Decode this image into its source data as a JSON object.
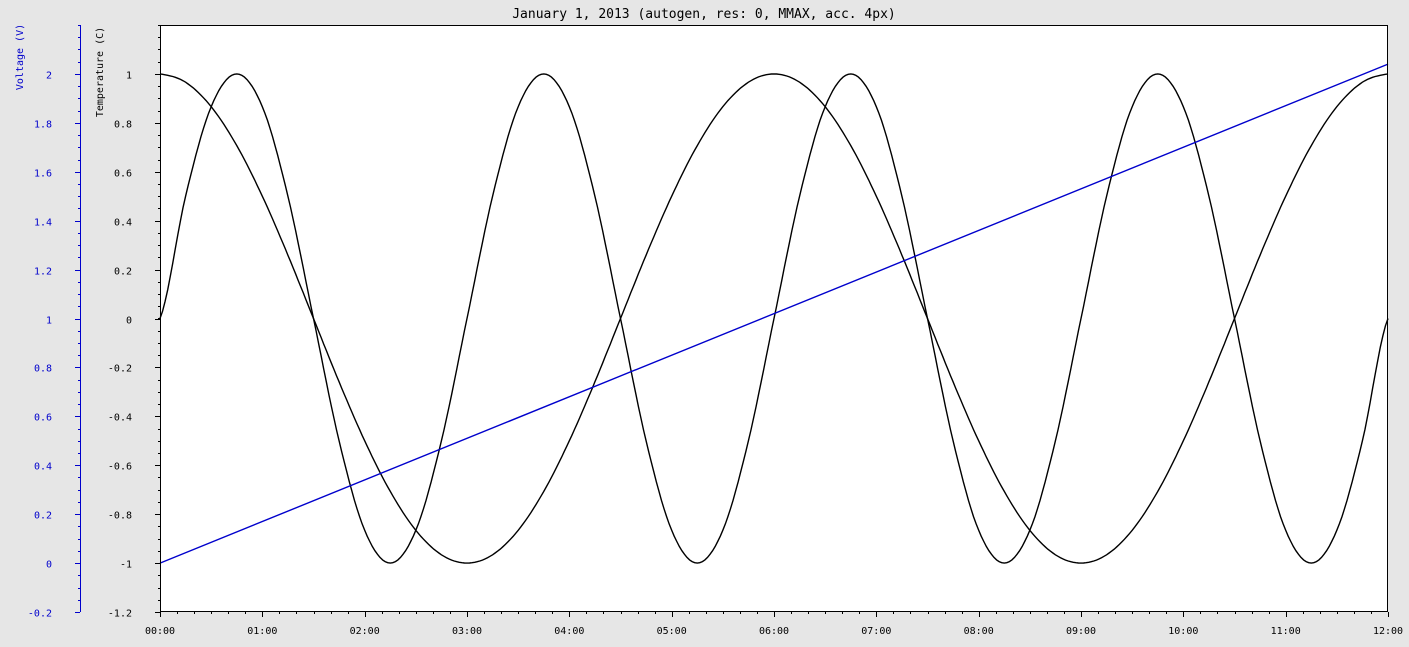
{
  "chart_data": {
    "type": "line",
    "title": "January 1, 2013 (autogen, res: 0, MMAX, acc. 4px)",
    "x_axis": {
      "range": [
        "00:00",
        "12:00"
      ],
      "tick_labels": [
        "00:00",
        "01:00",
        "02:00",
        "03:00",
        "04:00",
        "05:00",
        "06:00",
        "07:00",
        "08:00",
        "09:00",
        "10:00",
        "11:00",
        "12:00"
      ]
    },
    "y_axes": [
      {
        "label": "Temperature (C)",
        "color": "#000000",
        "range": [
          -1.2,
          1.2
        ],
        "tick_values": [
          1,
          0.8,
          0.6,
          0.4,
          0.2,
          0,
          -0.2,
          -0.4,
          -0.6,
          -0.8,
          -1,
          -1.2
        ],
        "tick_labels": [
          "1",
          "0.8",
          "0.6",
          "0.4",
          "0.2",
          "0",
          "-0.2",
          "-0.4",
          "-0.6",
          "-0.8",
          "-1",
          "-1.2"
        ]
      },
      {
        "label": "Voltage (V)",
        "color": "#0000cc",
        "range": [
          -0.2,
          2.2
        ],
        "tick_values": [
          2,
          1.8,
          1.6,
          1.4,
          1.2,
          1,
          0.8,
          0.6,
          0.4,
          0.2,
          0,
          -0.2
        ],
        "tick_labels": [
          "2",
          "1.8",
          "1.6",
          "1.4",
          "1.2",
          "1",
          "0.8",
          "0.6",
          "0.4",
          "0.2",
          "0",
          "-0.2"
        ]
      }
    ],
    "series": [
      {
        "axis": "Temperature (C)",
        "color": "#000000",
        "x_hours": [
          0,
          0.25,
          0.5,
          0.75,
          1,
          1.25,
          1.5,
          1.75,
          2,
          2.25,
          2.5,
          2.75,
          3,
          3.25,
          3.5,
          3.75,
          4,
          4.25,
          4.5,
          4.75,
          5,
          5.25,
          5.5,
          5.75,
          6,
          6.25,
          6.5,
          6.75,
          7,
          7.25,
          7.5,
          7.75,
          8,
          8.25,
          8.5,
          8.75,
          9,
          9.25,
          9.5,
          9.75,
          10,
          10.25,
          10.5,
          10.75,
          11,
          11.25,
          11.5,
          11.75,
          12
        ],
        "values": [
          1,
          0.966,
          0.866,
          0.707,
          0.5,
          0.259,
          0,
          -0.259,
          -0.5,
          -0.707,
          -0.866,
          -0.966,
          -1,
          -0.966,
          -0.866,
          -0.707,
          -0.5,
          -0.259,
          0,
          0.259,
          0.5,
          0.707,
          0.866,
          0.966,
          1,
          0.966,
          0.866,
          0.707,
          0.5,
          0.259,
          0,
          -0.259,
          -0.5,
          -0.707,
          -0.866,
          -0.966,
          -1,
          -0.966,
          -0.866,
          -0.707,
          -0.5,
          -0.259,
          0,
          0.259,
          0.5,
          0.707,
          0.866,
          0.966,
          1
        ]
      },
      {
        "axis": "Temperature (C)",
        "color": "#000000",
        "x_hours": [
          0,
          0.25,
          0.5,
          0.75,
          1,
          1.25,
          1.5,
          1.75,
          2,
          2.25,
          2.5,
          2.75,
          3,
          3.25,
          3.5,
          3.75,
          4,
          4.25,
          4.5,
          4.75,
          5,
          5.25,
          5.5,
          5.75,
          6,
          6.25,
          6.5,
          6.75,
          7,
          7.25,
          7.5,
          7.75,
          8,
          8.25,
          8.5,
          8.75,
          9,
          9.25,
          9.5,
          9.75,
          10,
          10.25,
          10.5,
          10.75,
          11,
          11.25,
          11.5,
          11.75,
          12
        ],
        "values": [
          0,
          0.5,
          0.866,
          1,
          0.866,
          0.5,
          0,
          -0.5,
          -0.866,
          -1,
          -0.866,
          -0.5,
          0,
          0.5,
          0.866,
          1,
          0.866,
          0.5,
          0,
          -0.5,
          -0.866,
          -1,
          -0.866,
          -0.5,
          0,
          0.5,
          0.866,
          1,
          0.866,
          0.5,
          0,
          -0.5,
          -0.866,
          -1,
          -0.866,
          -0.5,
          0,
          0.5,
          0.866,
          1,
          0.866,
          0.5,
          0,
          -0.5,
          -0.866,
          -1,
          -0.866,
          -0.5,
          0
        ]
      },
      {
        "axis": "Voltage (V)",
        "color": "#0000cc",
        "x_hours": [
          0,
          12
        ],
        "values": [
          0,
          2.04
        ]
      }
    ],
    "grid": false,
    "legend": "none"
  }
}
